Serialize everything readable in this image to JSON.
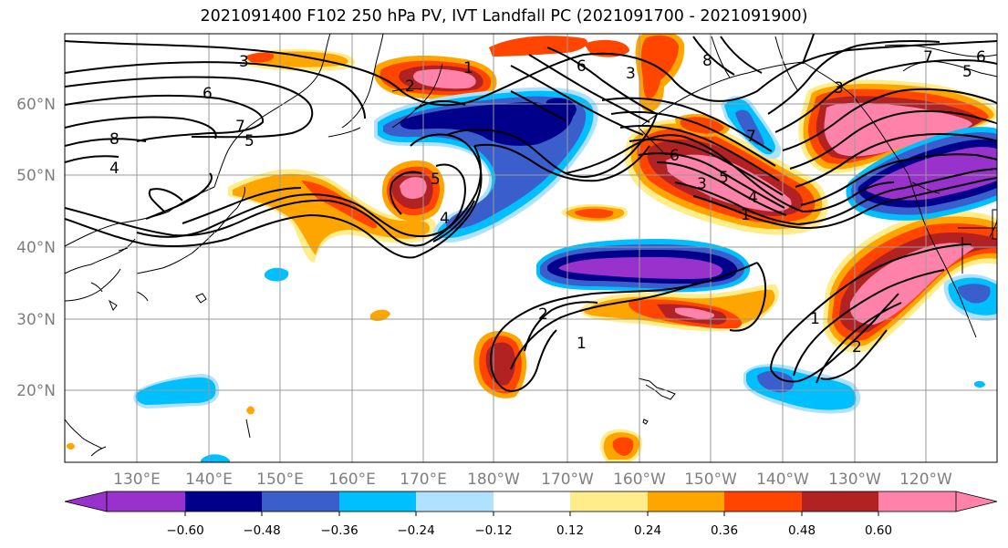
{
  "title": "2021091400 F102 250 hPa PV, IVT Landfall PC (2021091700 - 2021091900)",
  "lat_labels": [
    "60°N",
    "50°N",
    "40°N",
    "30°N",
    "20°N"
  ],
  "lon_labels": [
    "130°E",
    "140°E",
    "150°E",
    "160°E",
    "170°E",
    "180°W",
    "170°W",
    "160°W",
    "150°W",
    "140°W",
    "130°W",
    "120°W"
  ],
  "colorbar": {
    "colors": [
      "#9932cc",
      "#00008b",
      "#3a5fcd",
      "#00bfff",
      "#b0e2ff",
      "#ffffff",
      "#ffec8b",
      "#ffa500",
      "#ff4500",
      "#b22222",
      "#ff82ab"
    ],
    "tick_labels": [
      "−0.60",
      "−0.48",
      "−0.36",
      "−0.24",
      "−0.12",
      "0.12",
      "0.24",
      "0.36",
      "0.48",
      "0.60"
    ]
  },
  "contour_labels": [
    "3",
    "6",
    "8",
    "7",
    "5",
    "4",
    "1",
    "2",
    "5",
    "4",
    "3",
    "6",
    "8",
    "7",
    "6",
    "3",
    "5",
    "4",
    "1",
    "7",
    "3",
    "5",
    "6",
    "2",
    "1",
    "1",
    "2"
  ]
}
